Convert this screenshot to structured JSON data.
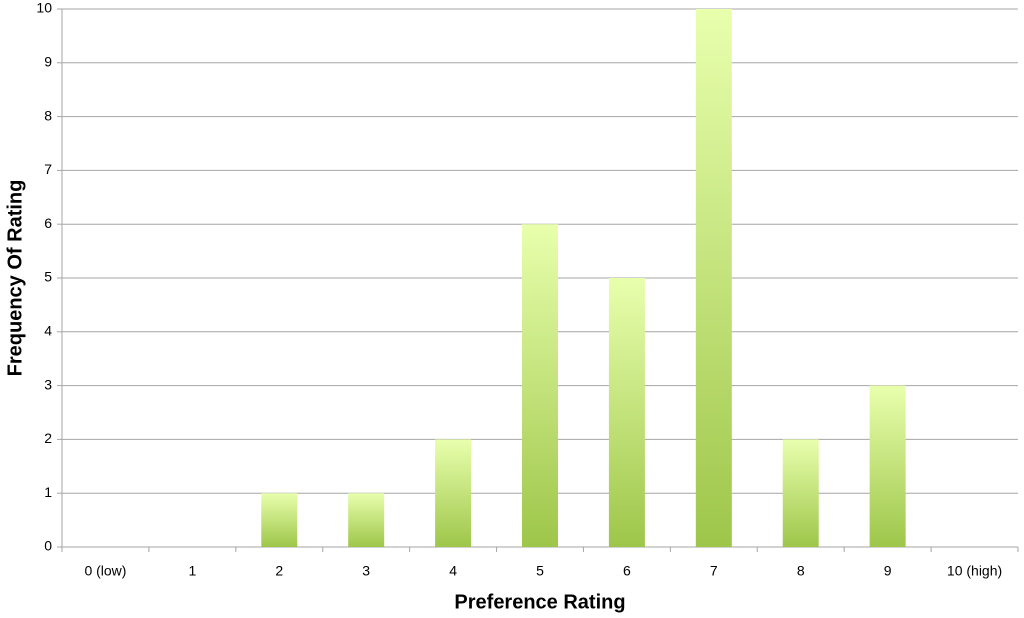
{
  "chart_data": {
    "type": "bar",
    "x_label": "Preference Rating",
    "y_label": "Frequency Of Rating",
    "categories": [
      "0 (low)",
      "1",
      "2",
      "3",
      "4",
      "5",
      "6",
      "7",
      "8",
      "9",
      "10 (high)"
    ],
    "values": [
      0,
      0,
      1,
      1,
      2,
      6,
      5,
      10,
      2,
      3,
      0
    ],
    "colors": [
      "#e8ffad",
      "#9ec64a"
    ],
    "ylim": [
      0,
      10
    ],
    "yticks": [
      0,
      1,
      2,
      3,
      4,
      5,
      6,
      7,
      8,
      9,
      10
    ],
    "grid": true
  }
}
